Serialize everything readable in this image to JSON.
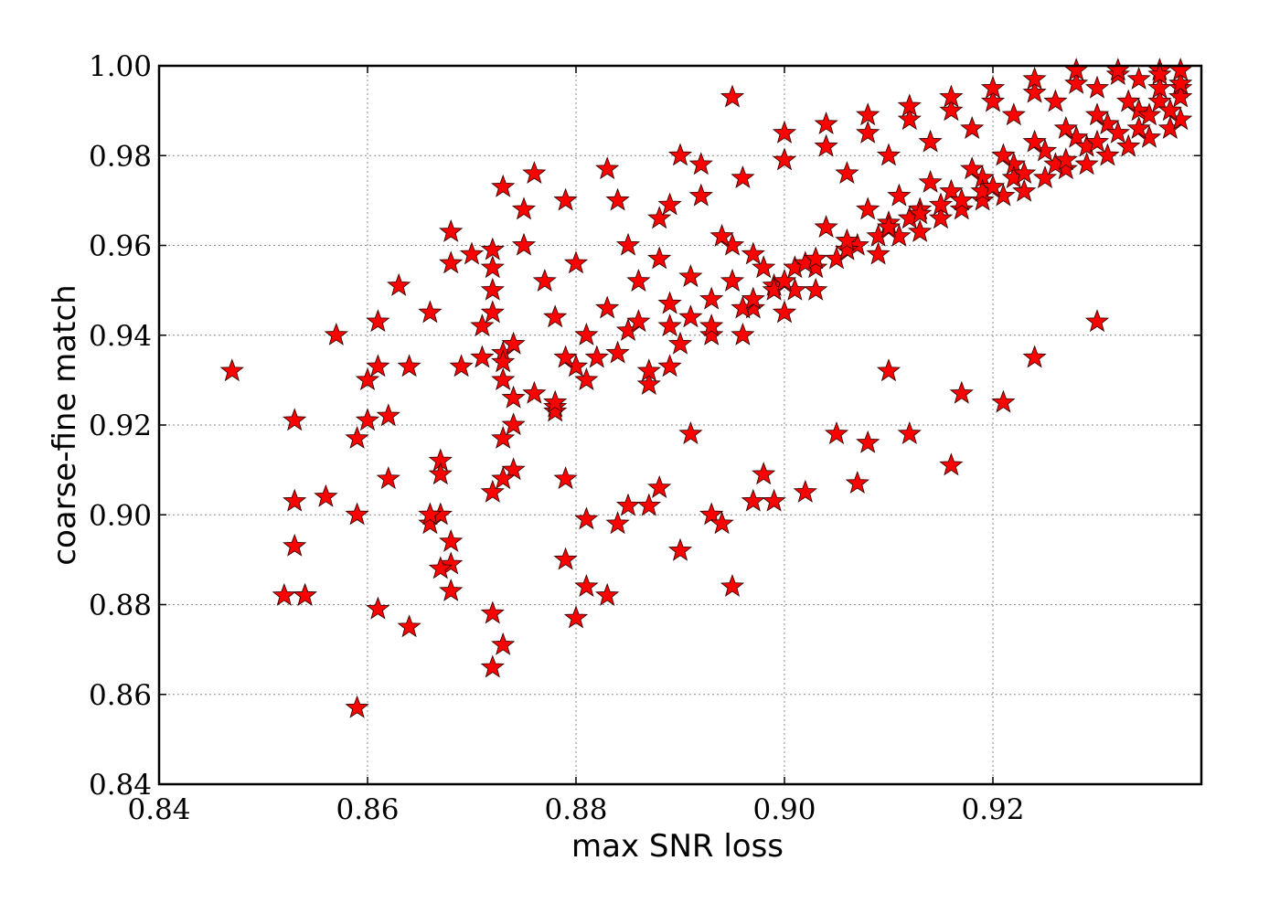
{
  "chart_data": {
    "type": "scatter",
    "title": "",
    "xlabel": "max SNR loss",
    "ylabel": "coarse-fine match",
    "xlim": [
      0.84,
      0.94
    ],
    "ylim": [
      0.84,
      1.0
    ],
    "xticks": [
      "0.84",
      "0.86",
      "0.88",
      "0.90",
      "0.92"
    ],
    "yticks": [
      "0.84",
      "0.86",
      "0.88",
      "0.90",
      "0.92",
      "0.94",
      "0.96",
      "0.98",
      "1.00"
    ],
    "grid": true,
    "marker": "star",
    "colors": {
      "marker_fill": "#ff0000",
      "marker_edge": "#3a0000"
    },
    "series": [
      {
        "x": [
          0.847,
          0.853,
          0.857,
          0.859,
          0.86,
          0.861,
          0.862,
          0.863,
          0.853,
          0.853,
          0.854,
          0.856,
          0.859,
          0.86,
          0.861,
          0.862,
          0.864,
          0.866,
          0.866,
          0.867,
          0.867,
          0.868,
          0.868,
          0.869,
          0.87,
          0.871,
          0.871,
          0.872,
          0.872,
          0.873,
          0.873,
          0.873,
          0.874,
          0.874,
          0.872,
          0.872,
          0.873,
          0.872,
          0.873,
          0.874,
          0.875,
          0.876,
          0.875,
          0.877,
          0.878,
          0.878,
          0.879,
          0.88,
          0.879,
          0.88,
          0.881,
          0.881,
          0.883,
          0.884,
          0.885,
          0.886,
          0.887,
          0.888,
          0.889,
          0.889,
          0.89,
          0.891,
          0.892,
          0.893,
          0.894,
          0.895,
          0.896,
          0.897,
          0.898,
          0.899,
          0.902,
          0.905,
          0.907,
          0.908,
          0.91,
          0.912,
          0.916,
          0.917,
          0.921,
          0.924,
          0.93,
          0.895,
          0.89,
          0.883,
          0.88,
          0.879,
          0.873,
          0.873,
          0.872,
          0.868,
          0.867,
          0.868,
          0.864,
          0.861,
          0.852,
          0.854,
          0.859,
          0.866,
          0.867,
          0.868,
          0.872,
          0.874,
          0.876,
          0.878,
          0.879,
          0.881,
          0.883,
          0.885,
          0.887,
          0.889,
          0.891,
          0.893,
          0.895,
          0.897,
          0.899,
          0.901,
          0.903,
          0.905,
          0.906,
          0.909,
          0.911,
          0.913,
          0.915,
          0.917,
          0.919,
          0.921,
          0.923,
          0.925,
          0.927,
          0.929,
          0.931,
          0.933,
          0.935,
          0.937,
          0.938,
          0.895,
          0.898,
          0.9,
          0.903,
          0.907,
          0.91,
          0.913,
          0.916,
          0.919,
          0.922,
          0.925,
          0.928,
          0.931,
          0.934,
          0.936,
          0.938,
          0.885,
          0.888,
          0.891,
          0.894,
          0.897,
          0.901,
          0.904,
          0.908,
          0.911,
          0.914,
          0.918,
          0.921,
          0.924,
          0.927,
          0.93,
          0.933,
          0.936,
          0.882,
          0.886,
          0.889,
          0.893,
          0.896,
          0.899,
          0.902,
          0.906,
          0.909,
          0.912,
          0.915,
          0.919,
          0.922,
          0.926,
          0.929,
          0.932,
          0.935,
          0.938,
          0.878,
          0.881,
          0.884,
          0.887,
          0.89,
          0.893,
          0.897,
          0.9,
          0.903,
          0.906,
          0.91,
          0.913,
          0.917,
          0.92,
          0.923,
          0.927,
          0.93,
          0.934,
          0.937,
          0.884,
          0.888,
          0.892,
          0.896,
          0.9,
          0.904,
          0.908,
          0.912,
          0.916,
          0.92,
          0.924,
          0.928,
          0.932,
          0.936,
          0.9,
          0.904,
          0.908,
          0.912,
          0.916,
          0.92,
          0.924,
          0.928,
          0.932,
          0.936,
          0.938,
          0.906,
          0.91,
          0.914,
          0.918,
          0.922,
          0.926,
          0.93,
          0.934,
          0.938
        ],
        "y": [
          0.932,
          0.921,
          0.94,
          0.917,
          0.93,
          0.943,
          0.922,
          0.951,
          0.903,
          0.893,
          0.882,
          0.904,
          0.9,
          0.921,
          0.933,
          0.908,
          0.933,
          0.898,
          0.945,
          0.912,
          0.9,
          0.963,
          0.956,
          0.933,
          0.958,
          0.942,
          0.935,
          0.959,
          0.95,
          0.936,
          0.93,
          0.917,
          0.92,
          0.91,
          0.905,
          0.878,
          0.871,
          0.866,
          0.908,
          0.926,
          0.96,
          0.976,
          0.968,
          0.952,
          0.944,
          0.924,
          0.97,
          0.933,
          0.908,
          0.877,
          0.884,
          0.899,
          0.882,
          0.898,
          0.902,
          0.952,
          0.902,
          0.906,
          0.942,
          0.969,
          0.892,
          0.918,
          0.978,
          0.9,
          0.898,
          0.884,
          0.94,
          0.903,
          0.909,
          0.903,
          0.905,
          0.918,
          0.907,
          0.916,
          0.932,
          0.918,
          0.911,
          0.927,
          0.925,
          0.935,
          0.943,
          0.993,
          0.98,
          0.977,
          0.956,
          0.89,
          0.973,
          0.934,
          0.955,
          0.889,
          0.888,
          0.883,
          0.875,
          0.879,
          0.882,
          0.882,
          0.857,
          0.9,
          0.909,
          0.894,
          0.945,
          0.938,
          0.927,
          0.923,
          0.935,
          0.94,
          0.946,
          0.941,
          0.929,
          0.933,
          0.944,
          0.948,
          0.952,
          0.946,
          0.951,
          0.95,
          0.955,
          0.957,
          0.959,
          0.958,
          0.962,
          0.963,
          0.966,
          0.968,
          0.97,
          0.971,
          0.972,
          0.975,
          0.977,
          0.978,
          0.98,
          0.982,
          0.984,
          0.986,
          0.988,
          0.96,
          0.955,
          0.945,
          0.95,
          0.96,
          0.965,
          0.968,
          0.972,
          0.975,
          0.978,
          0.981,
          0.984,
          0.987,
          0.99,
          0.992,
          0.995,
          0.96,
          0.957,
          0.953,
          0.962,
          0.958,
          0.955,
          0.964,
          0.968,
          0.971,
          0.974,
          0.977,
          0.98,
          0.983,
          0.986,
          0.989,
          0.992,
          0.995,
          0.935,
          0.943,
          0.947,
          0.94,
          0.946,
          0.95,
          0.956,
          0.959,
          0.962,
          0.966,
          0.969,
          0.972,
          0.975,
          0.978,
          0.982,
          0.985,
          0.989,
          0.993,
          0.925,
          0.93,
          0.936,
          0.932,
          0.938,
          0.942,
          0.948,
          0.952,
          0.957,
          0.961,
          0.964,
          0.967,
          0.97,
          0.973,
          0.976,
          0.979,
          0.983,
          0.986,
          0.99,
          0.97,
          0.966,
          0.971,
          0.975,
          0.979,
          0.982,
          0.985,
          0.988,
          0.99,
          0.992,
          0.994,
          0.996,
          0.998,
          0.999,
          0.985,
          0.987,
          0.989,
          0.991,
          0.993,
          0.995,
          0.997,
          0.999,
          0.999,
          0.998,
          0.996,
          0.976,
          0.98,
          0.983,
          0.986,
          0.989,
          0.992,
          0.995,
          0.997,
          0.999
        ]
      }
    ]
  }
}
